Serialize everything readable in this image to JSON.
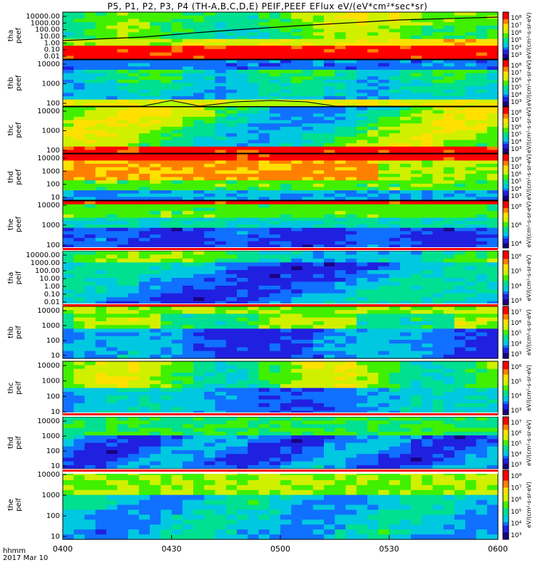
{
  "title": "P5, P1, P2, P3, P4 (TH-A,B,C,D,E) PEIF,PEEF EFlux eV/(eV*cm²*sec*sr)",
  "time_axis": {
    "label": "hhmm",
    "date": "2017 Mar 10",
    "ticks": [
      "0400",
      "0430",
      "0500",
      "0530",
      "0600"
    ]
  },
  "colors": {
    "colormap": [
      "#1a0080",
      "#2020e0",
      "#1070ff",
      "#00c8e0",
      "#00e090",
      "#40f000",
      "#d0f000",
      "#ffe000",
      "#ff8000",
      "#ff0000"
    ],
    "band_red": "#ff0000",
    "band_white": "#ffffff",
    "trace": "#000000",
    "trace_fill": "#b0ff00"
  },
  "chart_data": [
    {
      "type": "heatmap",
      "ylabel": "tha\npeef",
      "yticks": [
        "10000.00",
        "1000.00",
        "100.00",
        "10.00",
        "1.00",
        "0.10",
        "0.01"
      ],
      "cbar_ticks": [
        "10⁸",
        "10⁷",
        "10⁶",
        "10⁵",
        "10⁴",
        "10³"
      ],
      "cbar_label": "eV/(cm²-s-sr-eV)"
    },
    {
      "type": "heatmap",
      "ylabel": "thb\npeef",
      "yticks": [
        "10000",
        "1000",
        "100"
      ],
      "cbar_ticks": [
        "10⁸",
        "10⁷",
        "10⁶",
        "10⁵",
        "10⁴",
        "10³"
      ],
      "cbar_label": "eV/(cm²-s-sr-eV)"
    },
    {
      "type": "heatmap",
      "ylabel": "thc\npeef",
      "yticks": [
        "10000",
        "1000",
        "100"
      ],
      "cbar_ticks": [
        "10⁸",
        "10⁷",
        "10⁶",
        "10⁵",
        "10⁴",
        "10³"
      ],
      "cbar_label": "eV/(cm²-s-sr-eV)"
    },
    {
      "type": "heatmap",
      "ylabel": "thd\npeef",
      "yticks": [
        "10000",
        "1000",
        "100",
        "10"
      ],
      "cbar_ticks": [
        "10⁸",
        "10⁷",
        "10⁶",
        "10⁵",
        "10⁴",
        "10³"
      ],
      "cbar_label": "eV/(cm²-s-sr-eV)"
    },
    {
      "type": "heatmap",
      "ylabel": "the\npeef",
      "yticks": [
        "10000",
        "1000",
        "100"
      ],
      "cbar_ticks": [
        "10⁸",
        "10⁶",
        "10⁴"
      ],
      "cbar_label": "eV/(cm²-s-sr-eV)"
    },
    {
      "type": "heatmap",
      "ylabel": "tha\npeif",
      "yticks": [
        "10000.00",
        "1000.00",
        "100.00",
        "10.00",
        "1.00",
        "0.10",
        "0.01"
      ],
      "cbar_ticks": [
        "10⁶",
        "10⁵",
        "10⁴",
        "10³"
      ],
      "cbar_label": "eV/(cm²-s-sr-eV)"
    },
    {
      "type": "heatmap",
      "ylabel": "thb\npeif",
      "yticks": [
        "10000",
        "1000",
        "100",
        "10"
      ],
      "cbar_ticks": [
        "10⁷",
        "10⁶",
        "10⁵",
        "10⁴",
        "10³"
      ],
      "cbar_label": "eV/(cm²-s-sr-eV)"
    },
    {
      "type": "heatmap",
      "ylabel": "thc\npeif",
      "yticks": [
        "10000",
        "1000",
        "100",
        "10"
      ],
      "cbar_ticks": [
        "10⁶",
        "10⁵",
        "10⁴",
        "10³"
      ],
      "cbar_label": "eV/(cm²-s-sr-eV)"
    },
    {
      "type": "heatmap",
      "ylabel": "thd\npeif",
      "yticks": [
        "10000",
        "1000",
        "100",
        "10"
      ],
      "cbar_ticks": [
        "10⁷",
        "10⁶",
        "10⁵",
        "10⁴",
        "10³"
      ],
      "cbar_label": "eV/(cm²-s-sr-eV)"
    },
    {
      "type": "heatmap",
      "ylabel": "the\npeif",
      "yticks": [
        "10000",
        "1000",
        "100",
        "10"
      ],
      "cbar_ticks": [
        "10⁸",
        "10⁷",
        "10⁶",
        "10⁵",
        "10⁴",
        "10³"
      ],
      "cbar_label": "eV/(cm²-s-sr-eV)"
    }
  ]
}
